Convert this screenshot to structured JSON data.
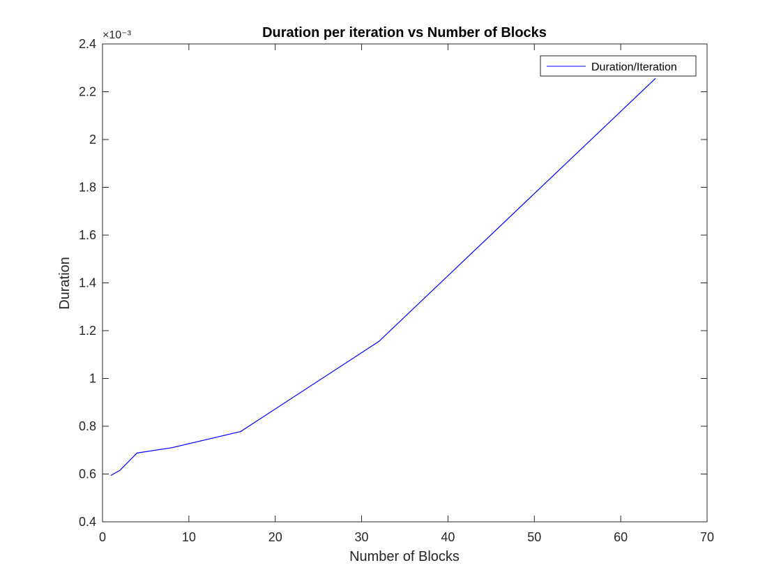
{
  "chart_data": {
    "type": "line",
    "title": "Duration per iteration vs Number of Blocks",
    "xlabel": "Number of Blocks",
    "ylabel": "Duration",
    "xlim": [
      0,
      70
    ],
    "ylim": [
      0.4,
      2.4
    ],
    "y_scale_exponent": "×10⁻³",
    "x_ticks": [
      "0",
      "10",
      "20",
      "30",
      "40",
      "50",
      "60",
      "70"
    ],
    "y_ticks": [
      "0.4",
      "0.6",
      "0.8",
      "1",
      "1.2",
      "1.4",
      "1.6",
      "1.8",
      "2",
      "2.2",
      "2.4"
    ],
    "grid": false,
    "legend_position": "top-right",
    "series": [
      {
        "name": "Duration/Iteration",
        "color": "#0000ff",
        "x": [
          1,
          2,
          4,
          8,
          16,
          32,
          64
        ],
        "y": [
          0.595,
          0.615,
          0.688,
          0.71,
          0.778,
          1.155,
          2.255
        ]
      }
    ]
  }
}
